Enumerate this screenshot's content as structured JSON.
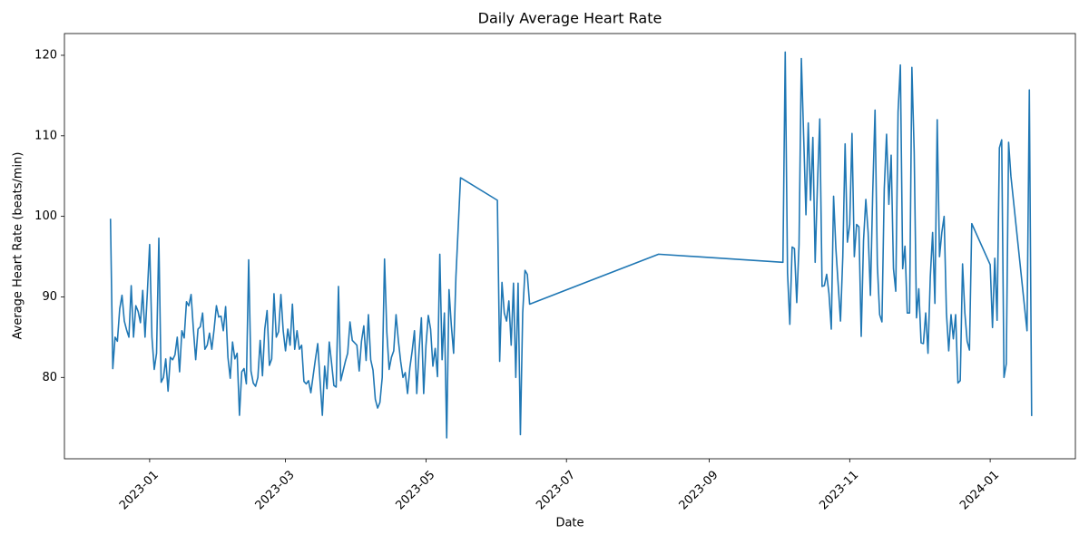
{
  "chart_data": {
    "type": "line",
    "title": "Daily Average Heart Rate",
    "xlabel": "Date",
    "ylabel": "Average Heart Rate (beats/min)",
    "color": "#1f77b4",
    "grid": false,
    "x": [
      "2022-12-15",
      "2022-12-16",
      "2022-12-17",
      "2022-12-18",
      "2022-12-19",
      "2022-12-20",
      "2022-12-21",
      "2022-12-22",
      "2022-12-23",
      "2022-12-24",
      "2022-12-25",
      "2022-12-26",
      "2022-12-27",
      "2022-12-28",
      "2022-12-29",
      "2022-12-30",
      "2022-12-31",
      "2023-01-01",
      "2023-01-02",
      "2023-01-03",
      "2023-01-04",
      "2023-01-05",
      "2023-01-06",
      "2023-01-07",
      "2023-01-08",
      "2023-01-09",
      "2023-01-10",
      "2023-01-11",
      "2023-01-12",
      "2023-01-13",
      "2023-01-14",
      "2023-01-15",
      "2023-01-16",
      "2023-01-17",
      "2023-01-18",
      "2023-01-19",
      "2023-01-20",
      "2023-01-21",
      "2023-01-22",
      "2023-01-23",
      "2023-01-24",
      "2023-01-25",
      "2023-01-26",
      "2023-01-27",
      "2023-01-28",
      "2023-01-29",
      "2023-01-30",
      "2023-01-31",
      "2023-02-01",
      "2023-02-02",
      "2023-02-03",
      "2023-02-04",
      "2023-02-05",
      "2023-02-06",
      "2023-02-07",
      "2023-02-08",
      "2023-02-09",
      "2023-02-10",
      "2023-02-11",
      "2023-02-12",
      "2023-02-13",
      "2023-02-14",
      "2023-02-15",
      "2023-02-16",
      "2023-02-17",
      "2023-02-18",
      "2023-02-19",
      "2023-02-20",
      "2023-02-21",
      "2023-02-22",
      "2023-02-23",
      "2023-02-24",
      "2023-02-25",
      "2023-02-26",
      "2023-02-27",
      "2023-02-28",
      "2023-03-01",
      "2023-03-02",
      "2023-03-03",
      "2023-03-04",
      "2023-03-05",
      "2023-03-06",
      "2023-03-07",
      "2023-03-08",
      "2023-03-09",
      "2023-03-10",
      "2023-03-11",
      "2023-03-12",
      "2023-03-13",
      "2023-03-14",
      "2023-03-15",
      "2023-03-16",
      "2023-03-17",
      "2023-03-18",
      "2023-03-19",
      "2023-03-20",
      "2023-03-21",
      "2023-03-22",
      "2023-03-23",
      "2023-03-24",
      "2023-03-25",
      "2023-03-26",
      "2023-03-27",
      "2023-03-28",
      "2023-03-29",
      "2023-03-30",
      "2023-03-31",
      "2023-04-01",
      "2023-04-02",
      "2023-04-03",
      "2023-04-04",
      "2023-04-05",
      "2023-04-06",
      "2023-04-07",
      "2023-04-08",
      "2023-04-09",
      "2023-04-10",
      "2023-04-11",
      "2023-04-12",
      "2023-04-13",
      "2023-04-14",
      "2023-04-15",
      "2023-04-16",
      "2023-04-17",
      "2023-04-18",
      "2023-04-19",
      "2023-04-20",
      "2023-04-21",
      "2023-04-22",
      "2023-04-23",
      "2023-04-24",
      "2023-04-25",
      "2023-04-26",
      "2023-04-27",
      "2023-04-28",
      "2023-04-29",
      "2023-04-30",
      "2023-05-01",
      "2023-05-02",
      "2023-05-03",
      "2023-05-04",
      "2023-05-05",
      "2023-05-06",
      "2023-05-07",
      "2023-05-08",
      "2023-05-09",
      "2023-05-10",
      "2023-05-11",
      "2023-05-12",
      "2023-05-13",
      "2023-05-14",
      "2023-05-16",
      "2023-06-01",
      "2023-06-02",
      "2023-06-03",
      "2023-06-04",
      "2023-06-05",
      "2023-06-06",
      "2023-06-07",
      "2023-06-08",
      "2023-06-09",
      "2023-06-10",
      "2023-06-11",
      "2023-06-12",
      "2023-06-13",
      "2023-06-14",
      "2023-06-15",
      "2023-08-10",
      "2023-10-03",
      "2023-10-04",
      "2023-10-05",
      "2023-10-06",
      "2023-10-07",
      "2023-10-08",
      "2023-10-09",
      "2023-10-10",
      "2023-10-11",
      "2023-10-12",
      "2023-10-13",
      "2023-10-14",
      "2023-10-15",
      "2023-10-16",
      "2023-10-17",
      "2023-10-18",
      "2023-10-19",
      "2023-10-20",
      "2023-10-21",
      "2023-10-22",
      "2023-10-23",
      "2023-10-24",
      "2023-10-25",
      "2023-10-26",
      "2023-10-27",
      "2023-10-28",
      "2023-10-29",
      "2023-10-30",
      "2023-10-31",
      "2023-11-01",
      "2023-11-02",
      "2023-11-03",
      "2023-11-04",
      "2023-11-05",
      "2023-11-06",
      "2023-11-07",
      "2023-11-08",
      "2023-11-09",
      "2023-11-10",
      "2023-11-11",
      "2023-11-12",
      "2023-11-13",
      "2023-11-14",
      "2023-11-15",
      "2023-11-16",
      "2023-11-17",
      "2023-11-18",
      "2023-11-19",
      "2023-11-20",
      "2023-11-21",
      "2023-11-22",
      "2023-11-23",
      "2023-11-24",
      "2023-11-25",
      "2023-11-26",
      "2023-11-27",
      "2023-11-28",
      "2023-11-29",
      "2023-11-30",
      "2023-12-01",
      "2023-12-02",
      "2023-12-03",
      "2023-12-04",
      "2023-12-05",
      "2023-12-06",
      "2023-12-07",
      "2023-12-08",
      "2023-12-09",
      "2023-12-10",
      "2023-12-11",
      "2023-12-12",
      "2023-12-13",
      "2023-12-14",
      "2023-12-15",
      "2023-12-16",
      "2023-12-17",
      "2023-12-18",
      "2023-12-19",
      "2023-12-20",
      "2023-12-21",
      "2023-12-22",
      "2023-12-23",
      "2023-12-24",
      "2024-01-01",
      "2024-01-02",
      "2024-01-03",
      "2024-01-04",
      "2024-01-05",
      "2024-01-06",
      "2024-01-07",
      "2024-01-08",
      "2024-01-09",
      "2024-01-10",
      "2024-01-17",
      "2024-01-18",
      "2024-01-19"
    ],
    "values": [
      99.7,
      81.1,
      85,
      84.5,
      88.5,
      90.2,
      87,
      85.9,
      85,
      91.4,
      85,
      88.9,
      88.2,
      86.8,
      90.8,
      85,
      90.5,
      96.5,
      85,
      81,
      83,
      97.3,
      79.4,
      80,
      82.3,
      78.3,
      82.5,
      82.2,
      82.8,
      85,
      80.7,
      85.8,
      84.9,
      89.4,
      88.9,
      90.3,
      86,
      82.2,
      86,
      86.3,
      88,
      83.5,
      84,
      85.5,
      83.5,
      86,
      88.9,
      87.5,
      87.6,
      85.8,
      88.8,
      82.5,
      79.9,
      84.4,
      82.3,
      83,
      75.3,
      80.7,
      81.1,
      79.2,
      94.6,
      80.8,
      79.3,
      78.9,
      80,
      84.6,
      80.2,
      86,
      88.3,
      81.5,
      82.3,
      90.4,
      85,
      85.7,
      90.3,
      85.8,
      83.3,
      86,
      84,
      89.1,
      83.5,
      85.8,
      83.5,
      84,
      79.5,
      79.2,
      79.6,
      78.1,
      80.2,
      82.3,
      84.2,
      79.6,
      75.3,
      81.4,
      78.6,
      84.4,
      81.8,
      79,
      78.8,
      91.3,
      79.6,
      80.8,
      82,
      83,
      86.9,
      84.6,
      84.3,
      84,
      80.8,
      84.5,
      86.4,
      82.1,
      87.8,
      82.2,
      80.9,
      77.3,
      76.2,
      76.9,
      80,
      94.7,
      85.6,
      81,
      82.5,
      83.3,
      87.8,
      84.6,
      82,
      80,
      80.6,
      78,
      81.2,
      83.3,
      85.8,
      78,
      83.3,
      87.4,
      78,
      84,
      87.7,
      86,
      81.4,
      83.6,
      80.1,
      95.3,
      82.2,
      88,
      72.5,
      90.9,
      86.5,
      83,
      92.5,
      104.8,
      102,
      82,
      91.8,
      88,
      87,
      89.5,
      84,
      91.7,
      80,
      91.7,
      72.9,
      88,
      93.3,
      92.8,
      89.1,
      95.3,
      94.3,
      120.4,
      93,
      86.6,
      96.2,
      96,
      89.3,
      96.5,
      119.6,
      110,
      100.2,
      111.6,
      102,
      109.8,
      94.3,
      104,
      112.1,
      91.3,
      91.4,
      92.8,
      90.4,
      86,
      102.5,
      96,
      91.5,
      87,
      95,
      109,
      96.8,
      99,
      110.3,
      95,
      99,
      98.7,
      85.1,
      97,
      102.1,
      98,
      90.2,
      103,
      113.2,
      94,
      87.8,
      86.9,
      103.4,
      110.2,
      101.5,
      107.6,
      93.5,
      90.7,
      113,
      118.8,
      93.5,
      96.3,
      88,
      88,
      118.5,
      108,
      87.4,
      91,
      84.3,
      84.2,
      88,
      83,
      92.5,
      98,
      89.2,
      112,
      95,
      98,
      100,
      88,
      83.3,
      87.8,
      84.8,
      87.8,
      79.3,
      79.6,
      94.1,
      88,
      84.5,
      83.4,
      99.1,
      94,
      86.2,
      94.8,
      87.1,
      108.5,
      109.5,
      80,
      81.7,
      109.2,
      105,
      85.8,
      115.7,
      75.2
    ],
    "xlim": [
      "2022-11-25",
      "2024-02-07"
    ],
    "xticks": [
      {
        "value": "2023-01-01",
        "label": "2023-01"
      },
      {
        "value": "2023-03-01",
        "label": "2023-03"
      },
      {
        "value": "2023-05-01",
        "label": "2023-05"
      },
      {
        "value": "2023-07-01",
        "label": "2023-07"
      },
      {
        "value": "2023-09-01",
        "label": "2023-09"
      },
      {
        "value": "2023-11-01",
        "label": "2023-11"
      },
      {
        "value": "2024-01-01",
        "label": "2024-01"
      }
    ],
    "ylim": [
      69.9,
      122.7
    ],
    "yticks": [
      80,
      90,
      100,
      110,
      120
    ]
  }
}
